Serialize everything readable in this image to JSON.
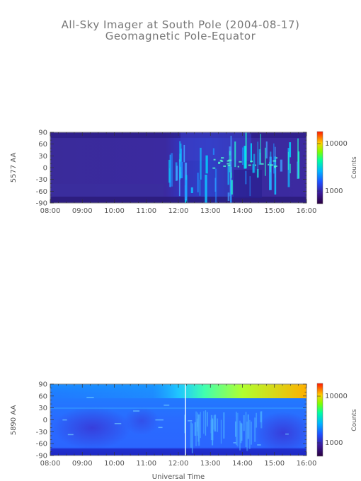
{
  "title": "All-Sky Imager at South Pole (2004-08-17)",
  "subtitle": "Geomagnetic Pole-Equator",
  "chart_data": [
    {
      "type": "heatmap",
      "ylabel": "5577 AA",
      "x_ticks": [
        "08:00",
        "09:00",
        "10:00",
        "11:00",
        "12:00",
        "13:00",
        "14:00",
        "15:00",
        "16:00"
      ],
      "y_ticks": [
        "90",
        "60",
        "30",
        "0",
        "-30",
        "-60",
        "-90"
      ],
      "xlim": [
        "08:00",
        "16:00"
      ],
      "ylim": [
        -90,
        90
      ],
      "colorbar": {
        "label": "Counts",
        "ticks": [
          "10000",
          "1000"
        ],
        "scale": "log",
        "colormap": "rainbow"
      }
    },
    {
      "type": "heatmap",
      "xlabel": "Universal Time",
      "ylabel": "5890 AA",
      "x_ticks": [
        "08:00",
        "09:00",
        "10:00",
        "11:00",
        "12:00",
        "13:00",
        "14:00",
        "15:00",
        "16:00"
      ],
      "y_ticks": [
        "90",
        "60",
        "30",
        "0",
        "-30",
        "-60",
        "-90"
      ],
      "xlim": [
        "08:00",
        "16:00"
      ],
      "ylim": [
        -90,
        90
      ],
      "colorbar": {
        "label": "Counts",
        "ticks": [
          "10000",
          "1000"
        ],
        "scale": "log",
        "colormap": "rainbow"
      }
    }
  ]
}
